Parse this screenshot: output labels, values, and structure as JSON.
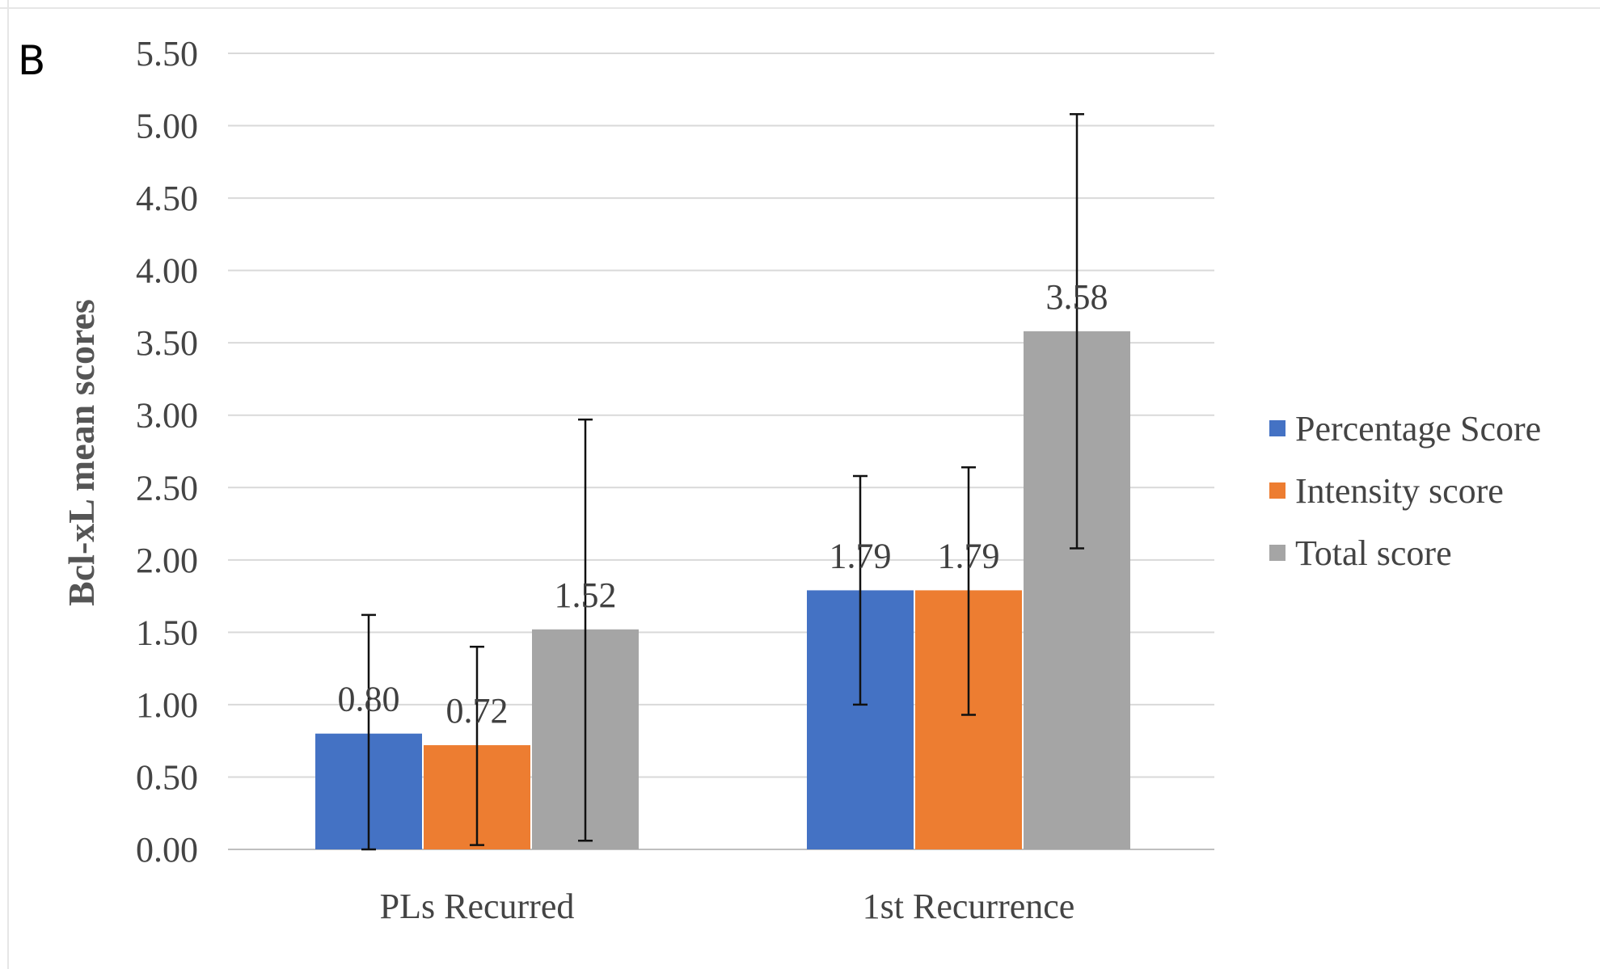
{
  "panel_label": "B",
  "chart_data": {
    "type": "bar",
    "title": "",
    "panel_label": "B",
    "xlabel": "",
    "ylabel": "Bcl-xL mean scores",
    "ylim": [
      0,
      5.5
    ],
    "yticks": [
      "0.00",
      "0.50",
      "1.00",
      "1.50",
      "2.00",
      "2.50",
      "3.00",
      "3.50",
      "4.00",
      "4.50",
      "5.00",
      "5.50"
    ],
    "grid": true,
    "legend_position": "right",
    "categories": [
      "PLs Recurred",
      "1st Recurrence"
    ],
    "series": [
      {
        "name": "Percentage Score",
        "color": "#4472C4",
        "values": [
          0.8,
          1.79
        ],
        "labels": [
          "0.80",
          "1.79"
        ],
        "error_low": [
          0.0,
          1.0
        ],
        "error_high": [
          1.62,
          2.58
        ]
      },
      {
        "name": "Intensity score",
        "color": "#ED7D31",
        "values": [
          0.72,
          1.79
        ],
        "labels": [
          "0.72",
          "1.79"
        ],
        "error_low": [
          0.03,
          0.93
        ],
        "error_high": [
          1.4,
          2.64
        ]
      },
      {
        "name": "Total score",
        "color": "#A5A5A5",
        "values": [
          1.52,
          3.58
        ],
        "labels": [
          "1.52",
          "3.58"
        ],
        "error_low": [
          0.06,
          2.08
        ],
        "error_high": [
          2.97,
          5.08
        ]
      }
    ]
  }
}
